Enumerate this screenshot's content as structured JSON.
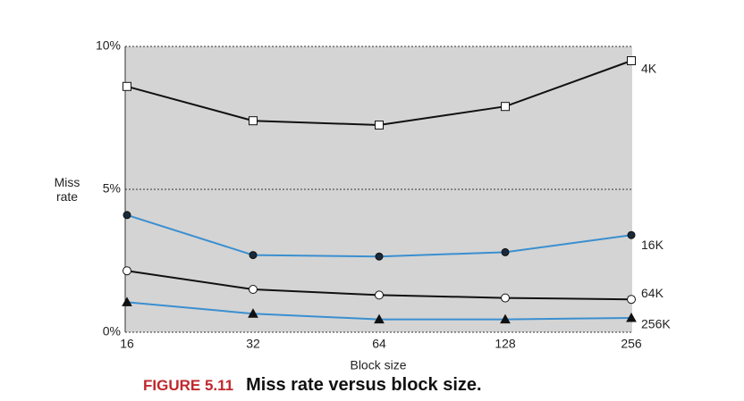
{
  "chart_data": {
    "type": "line",
    "title": "Miss rate versus block size.",
    "figure_label": "FIGURE 5.11",
    "x_label": "Block size",
    "y_label": "Miss rate",
    "categories": [
      "16",
      "32",
      "64",
      "128",
      "256"
    ],
    "ylim": [
      0,
      10
    ],
    "yticks": [
      {
        "value": 0,
        "label": "0%"
      },
      {
        "value": 5,
        "label": "5%"
      },
      {
        "value": 10,
        "label": "10%"
      }
    ],
    "grid": true,
    "series": [
      {
        "name": "4K",
        "color": "#111111",
        "marker": "open-square",
        "values": [
          8.6,
          7.4,
          7.25,
          7.9,
          9.5
        ]
      },
      {
        "name": "16K",
        "color": "#3a8fd0",
        "marker": "filled-circle",
        "values": [
          4.1,
          2.7,
          2.65,
          2.8,
          3.4
        ]
      },
      {
        "name": "64K",
        "color": "#111111",
        "marker": "open-circle",
        "values": [
          2.15,
          1.5,
          1.3,
          1.2,
          1.15
        ]
      },
      {
        "name": "256K",
        "color": "#3a8fd0",
        "marker": "filled-triangle",
        "values": [
          1.05,
          0.65,
          0.45,
          0.45,
          0.5
        ]
      }
    ]
  }
}
